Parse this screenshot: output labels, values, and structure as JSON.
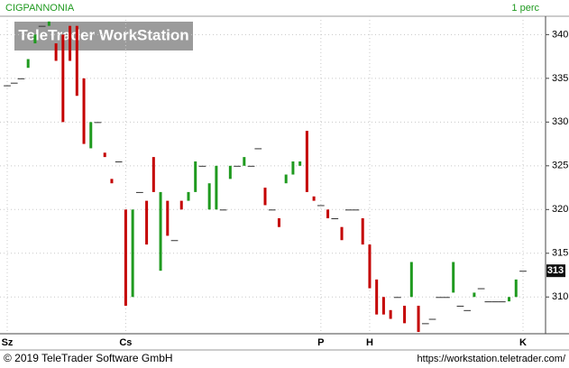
{
  "chart_data": {
    "type": "candlestick",
    "title": "CIGPANNONIA",
    "interval": "1 perc",
    "watermark": "TeleTrader WorkStation",
    "footer_left": "© 2019 TeleTrader Software GmbH",
    "footer_right": "https://workstation.teletrader.com/",
    "categories": [
      "Sz",
      null,
      null,
      null,
      null,
      null,
      null,
      null,
      null,
      null,
      null,
      null,
      null,
      null,
      null,
      null,
      null,
      "Cs",
      null,
      null,
      null,
      null,
      null,
      null,
      null,
      null,
      null,
      null,
      null,
      null,
      null,
      null,
      null,
      null,
      null,
      null,
      null,
      null,
      null,
      null,
      null,
      null,
      null,
      null,
      null,
      "P",
      null,
      null,
      null,
      null,
      null,
      null,
      "H",
      null,
      null,
      null,
      null,
      null,
      null,
      null,
      null,
      null,
      null,
      null,
      null,
      null,
      null,
      null,
      null,
      null,
      null,
      null,
      null,
      null,
      "K"
    ],
    "open": [
      334.2,
      334.5,
      335,
      336.2,
      339,
      341,
      341,
      339,
      340,
      341,
      341,
      335,
      327,
      330,
      326.5,
      323.5,
      325.5,
      320,
      310,
      322,
      321,
      326,
      313,
      321,
      316.5,
      321,
      321,
      322,
      325,
      320,
      320,
      320,
      323.5,
      325,
      325,
      325,
      327,
      322.5,
      320,
      319,
      323,
      324,
      325,
      329,
      321.5,
      320.5,
      320,
      319,
      318,
      320,
      320,
      319,
      316,
      312,
      310,
      308.5,
      310,
      309,
      310,
      309,
      307,
      307.5,
      310,
      310,
      310.5,
      309,
      308.5,
      310,
      311,
      309.5,
      309.5,
      309.5,
      309.5,
      310,
      313
    ],
    "close": [
      334.2,
      334.5,
      335,
      337.2,
      340,
      341,
      341.5,
      337,
      330,
      337,
      333,
      327.5,
      330,
      330,
      326,
      323,
      325.5,
      309,
      320,
      322,
      316,
      322,
      322,
      317,
      316.5,
      320,
      322,
      325.5,
      325,
      323,
      325,
      320,
      325,
      325,
      326,
      325,
      327,
      320.5,
      320,
      318,
      324,
      325.5,
      325.5,
      322,
      321,
      320.5,
      319,
      319,
      316.5,
      320,
      320,
      316,
      311,
      308,
      308,
      307.5,
      310,
      307,
      314,
      306,
      307,
      307.5,
      310,
      310,
      314,
      309,
      308.5,
      310.5,
      311,
      309.5,
      309.5,
      309.5,
      310,
      312,
      313
    ],
    "up_color": "#1f9a1f",
    "down_color": "#c40000",
    "ylim": [
      305.8,
      342.1
    ],
    "yticks": [
      310,
      315,
      320,
      325,
      330,
      335,
      340
    ],
    "grid": true
  }
}
